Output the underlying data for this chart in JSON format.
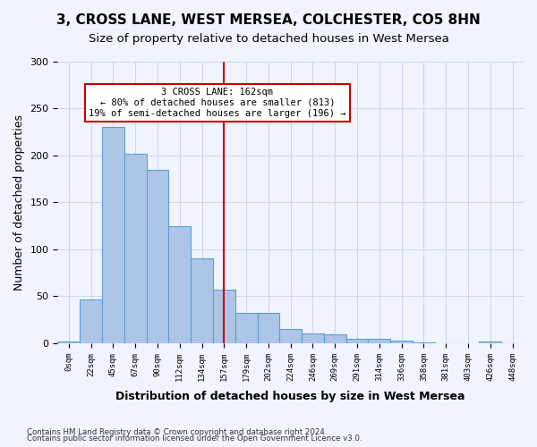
{
  "title": "3, CROSS LANE, WEST MERSEA, COLCHESTER, CO5 8HN",
  "subtitle": "Size of property relative to detached houses in West Mersea",
  "xlabel": "Distribution of detached houses by size in West Mersea",
  "ylabel": "Number of detached properties",
  "bar_labels": [
    "0sqm",
    "22sqm",
    "45sqm",
    "67sqm",
    "90sqm",
    "112sqm",
    "134sqm",
    "157sqm",
    "179sqm",
    "202sqm",
    "224sqm",
    "246sqm",
    "269sqm",
    "291sqm",
    "314sqm",
    "336sqm",
    "358sqm",
    "381sqm",
    "403sqm",
    "426sqm",
    "448sqm"
  ],
  "bar_values": [
    2,
    47,
    230,
    202,
    185,
    125,
    90,
    57,
    32,
    32,
    15,
    10,
    9,
    5,
    5,
    3,
    1,
    0,
    0,
    2,
    0
  ],
  "bar_color": "#adc6e8",
  "bar_edge_color": "#5a9fd4",
  "vline_x": 7,
  "vline_color": "#cc0000",
  "annotation_text": "3 CROSS LANE: 162sqm\n← 80% of detached houses are smaller (813)\n19% of semi-detached houses are larger (196) →",
  "annotation_box_color": "#ffffff",
  "annotation_box_edge": "#cc0000",
  "ylim": [
    0,
    300
  ],
  "yticks": [
    0,
    50,
    100,
    150,
    200,
    250,
    300
  ],
  "grid_color": "#d0d8e8",
  "background_color": "#f0f4ff",
  "footer1": "Contains HM Land Registry data © Crown copyright and database right 2024.",
  "footer2": "Contains public sector information licensed under the Open Government Licence v3.0.",
  "title_fontsize": 11,
  "subtitle_fontsize": 9.5,
  "ylabel_fontsize": 9,
  "xlabel_fontsize": 9
}
